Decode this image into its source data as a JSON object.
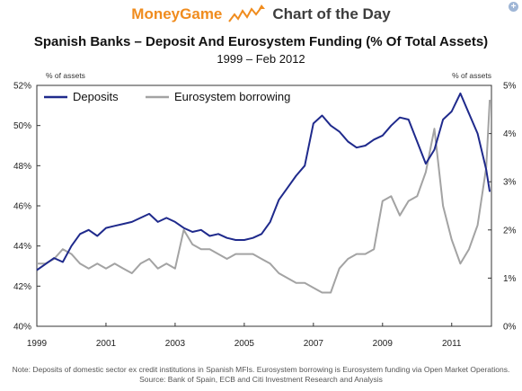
{
  "banner": {
    "brand": "MoneyGame",
    "tagline": "Chart of the Day",
    "brand_icon": "trend-arrow-icon",
    "corner_icon": "plus-icon",
    "brand_color": "#f08c1e"
  },
  "chart_data": {
    "type": "line",
    "title": "Spanish Banks – Deposit And Eurosystem Funding (% Of Total Assets)",
    "subtitle": "1999 – Feb 2012",
    "ylabel_left": "% of assets",
    "ylabel_right": "% of assets",
    "xlim": [
      1999,
      2012.15
    ],
    "x_ticks": [
      1999,
      2001,
      2003,
      2005,
      2007,
      2009,
      2011
    ],
    "x_tick_labels": [
      "1999",
      "2001",
      "2003",
      "2005",
      "2007",
      "2009",
      "2011"
    ],
    "ylim_left": [
      40,
      52
    ],
    "y_ticks_left": [
      40,
      42,
      44,
      46,
      48,
      50,
      52
    ],
    "y_tick_labels_left": [
      "40%",
      "42%",
      "44%",
      "46%",
      "48%",
      "50%",
      "52%"
    ],
    "ylim_right": [
      0,
      5
    ],
    "y_ticks_right": [
      0,
      1,
      2,
      3,
      4,
      5
    ],
    "y_tick_labels_right": [
      "0%",
      "1%",
      "2%",
      "3%",
      "4%",
      "5%"
    ],
    "grid": false,
    "legend_position": "top-left",
    "series": [
      {
        "name": "Deposits",
        "axis": "left",
        "color": "#1f2a8c",
        "x": [
          1999.0,
          1999.25,
          1999.5,
          1999.75,
          2000.0,
          2000.25,
          2000.5,
          2000.75,
          2001.0,
          2001.25,
          2001.5,
          2001.75,
          2002.0,
          2002.25,
          2002.5,
          2002.75,
          2003.0,
          2003.25,
          2003.5,
          2003.75,
          2004.0,
          2004.25,
          2004.5,
          2004.75,
          2005.0,
          2005.25,
          2005.5,
          2005.75,
          2006.0,
          2006.25,
          2006.5,
          2006.75,
          2007.0,
          2007.25,
          2007.5,
          2007.75,
          2008.0,
          2008.25,
          2008.5,
          2008.75,
          2009.0,
          2009.25,
          2009.5,
          2009.75,
          2010.0,
          2010.25,
          2010.5,
          2010.75,
          2011.0,
          2011.25,
          2011.5,
          2011.75,
          2012.0,
          2012.1
        ],
        "values": [
          42.8,
          43.1,
          43.4,
          43.2,
          44.0,
          44.6,
          44.8,
          44.5,
          44.9,
          45.0,
          45.1,
          45.2,
          45.4,
          45.6,
          45.2,
          45.4,
          45.2,
          44.9,
          44.7,
          44.8,
          44.5,
          44.6,
          44.4,
          44.3,
          44.3,
          44.4,
          44.6,
          45.2,
          46.3,
          46.9,
          47.5,
          48.0,
          50.1,
          50.5,
          50.0,
          49.7,
          49.2,
          48.9,
          49.0,
          49.3,
          49.5,
          50.0,
          50.4,
          50.3,
          49.2,
          48.1,
          48.8,
          50.3,
          50.7,
          51.6,
          50.6,
          49.6,
          47.8,
          46.7
        ]
      },
      {
        "name": "Eurosystem borrowing",
        "axis": "right",
        "color": "#a3a3a3",
        "x": [
          1999.0,
          1999.25,
          1999.5,
          1999.75,
          2000.0,
          2000.25,
          2000.5,
          2000.75,
          2001.0,
          2001.25,
          2001.5,
          2001.75,
          2002.0,
          2002.25,
          2002.5,
          2002.75,
          2003.0,
          2003.25,
          2003.5,
          2003.75,
          2004.0,
          2004.25,
          2004.5,
          2004.75,
          2005.0,
          2005.25,
          2005.5,
          2005.75,
          2006.0,
          2006.25,
          2006.5,
          2006.75,
          2007.0,
          2007.25,
          2007.5,
          2007.75,
          2008.0,
          2008.25,
          2008.5,
          2008.75,
          2009.0,
          2009.25,
          2009.5,
          2009.75,
          2010.0,
          2010.25,
          2010.5,
          2010.75,
          2011.0,
          2011.25,
          2011.5,
          2011.75,
          2012.0,
          2012.1
        ],
        "values": [
          1.3,
          1.3,
          1.4,
          1.6,
          1.5,
          1.3,
          1.2,
          1.3,
          1.2,
          1.3,
          1.2,
          1.1,
          1.3,
          1.4,
          1.2,
          1.3,
          1.2,
          2.0,
          1.7,
          1.6,
          1.6,
          1.5,
          1.4,
          1.5,
          1.5,
          1.5,
          1.4,
          1.3,
          1.1,
          1.0,
          0.9,
          0.9,
          0.8,
          0.7,
          0.7,
          1.2,
          1.4,
          1.5,
          1.5,
          1.6,
          2.6,
          2.7,
          2.3,
          2.6,
          2.7,
          3.2,
          4.1,
          2.5,
          1.8,
          1.3,
          1.6,
          2.1,
          3.3,
          4.7
        ]
      }
    ]
  },
  "footnote": {
    "line1": "Note: Deposits of domestic sector ex credit institutions in Spanish MFIs. Eurosystem borrowing is Eurosystem funding via Open Market Operations.",
    "line2": "Source: Bank of Spain, ECB and Citi Investment Research and Analysis"
  }
}
